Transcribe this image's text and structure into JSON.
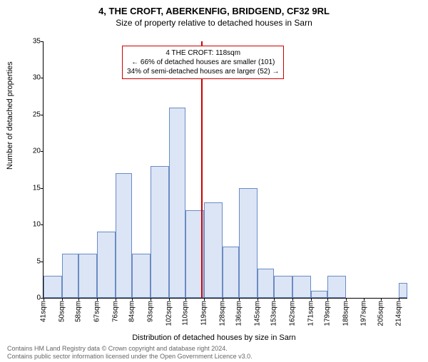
{
  "title_main": "4, THE CROFT, ABERKENFIG, BRIDGEND, CF32 9RL",
  "title_sub": "Size of property relative to detached houses in Sarn",
  "ylabel": "Number of detached properties",
  "xlabel": "Distribution of detached houses by size in Sarn",
  "footer_line1": "Contains HM Land Registry data © Crown copyright and database right 2024.",
  "footer_line2": "Contains public sector information licensed under the Open Government Licence v3.0.",
  "annotation": {
    "line1": "4 THE CROFT: 118sqm",
    "line2": "← 66% of detached houses are smaller (101)",
    "line3": "34% of semi-detached houses are larger (52) →"
  },
  "chart": {
    "type": "histogram",
    "ylim": [
      0,
      35
    ],
    "ytick_step": 5,
    "x_min": 41,
    "x_max": 218,
    "x_ticks": [
      41,
      50,
      58,
      67,
      76,
      84,
      93,
      102,
      110,
      119,
      128,
      136,
      145,
      153,
      162,
      171,
      179,
      188,
      197,
      205,
      214
    ],
    "x_tick_suffix": "sqm",
    "reference_x": 118,
    "reference_color": "#cc0000",
    "bar_color": "#dce5f5",
    "bar_border_color": "#6a8bc5",
    "background_color": "#ffffff",
    "title_fontsize": 13,
    "label_fontsize": 11,
    "tick_fontsize": 10,
    "bars": [
      {
        "x0": 41,
        "x1": 50,
        "y": 3
      },
      {
        "x0": 50,
        "x1": 58,
        "y": 6
      },
      {
        "x0": 58,
        "x1": 67,
        "y": 6
      },
      {
        "x0": 67,
        "x1": 76,
        "y": 9
      },
      {
        "x0": 76,
        "x1": 84,
        "y": 17
      },
      {
        "x0": 84,
        "x1": 93,
        "y": 6
      },
      {
        "x0": 93,
        "x1": 102,
        "y": 18
      },
      {
        "x0": 102,
        "x1": 110,
        "y": 26
      },
      {
        "x0": 110,
        "x1": 119,
        "y": 12
      },
      {
        "x0": 119,
        "x1": 128,
        "y": 13
      },
      {
        "x0": 128,
        "x1": 136,
        "y": 7
      },
      {
        "x0": 136,
        "x1": 145,
        "y": 15
      },
      {
        "x0": 145,
        "x1": 153,
        "y": 4
      },
      {
        "x0": 153,
        "x1": 162,
        "y": 3
      },
      {
        "x0": 162,
        "x1": 171,
        "y": 3
      },
      {
        "x0": 171,
        "x1": 179,
        "y": 1
      },
      {
        "x0": 179,
        "x1": 188,
        "y": 3
      },
      {
        "x0": 188,
        "x1": 197,
        "y": 0
      },
      {
        "x0": 197,
        "x1": 205,
        "y": 0
      },
      {
        "x0": 205,
        "x1": 214,
        "y": 0
      },
      {
        "x0": 214,
        "x1": 218,
        "y": 2
      }
    ]
  }
}
